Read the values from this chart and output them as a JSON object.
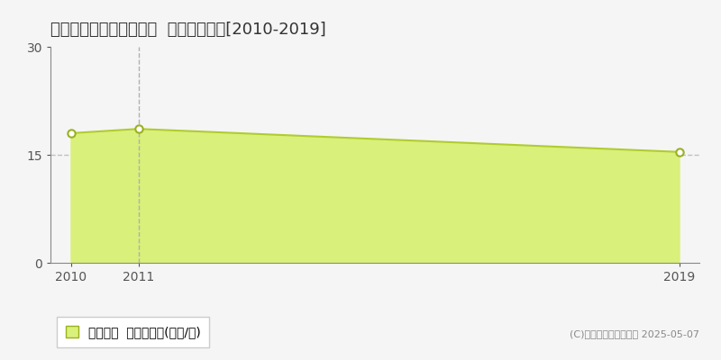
{
  "title": "名張市桔梗が丘西３番町  土地価格推移[2010-2019]",
  "years": [
    2010,
    2011,
    2019
  ],
  "values": [
    18.0,
    18.6,
    15.4
  ],
  "fill_color": "#d9f07a",
  "line_color": "#b0cc30",
  "marker_color": "white",
  "marker_edge_color": "#9ab020",
  "vline_year": 2011,
  "vline_color": "#b0b0b0",
  "yticks": [
    0,
    15,
    30
  ],
  "xticks": [
    2010,
    2011,
    2019
  ],
  "ylim": [
    0,
    30
  ],
  "xlim": [
    2010,
    2019
  ],
  "grid_color": "#c0c0c0",
  "bg_color": "#f5f5f5",
  "legend_label": "土地価格  平均坪単価(万円/坪)",
  "copyright": "(C)土地価格ドットコム 2025-05-07",
  "title_fontsize": 13,
  "axis_fontsize": 10,
  "legend_fontsize": 10
}
